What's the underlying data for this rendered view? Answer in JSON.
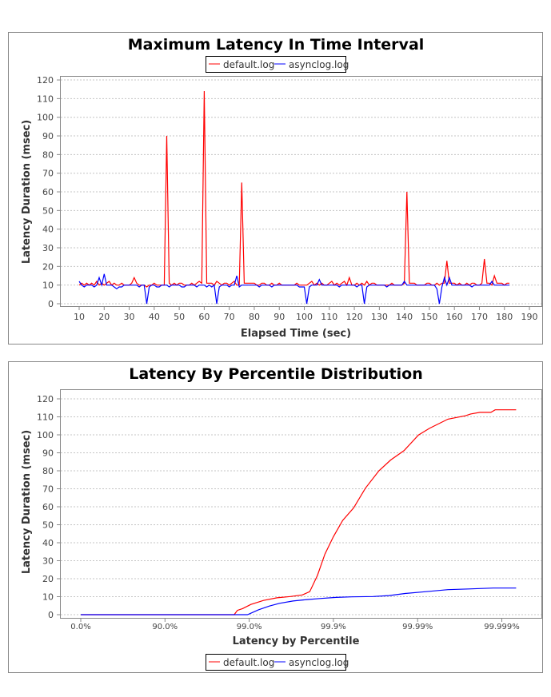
{
  "chart_data": [
    {
      "type": "line",
      "title": "Maximum Latency In Time Interval",
      "xlabel": "Elapsed Time (sec)",
      "ylabel": "Latency Duration (msec)",
      "xticks": [
        "10",
        "20",
        "30",
        "40",
        "50",
        "60",
        "70",
        "80",
        "90",
        "100",
        "110",
        "120",
        "130",
        "140",
        "150",
        "160",
        "170",
        "180",
        "190"
      ],
      "yticks": [
        "0",
        "10",
        "20",
        "30",
        "40",
        "50",
        "60",
        "70",
        "80",
        "90",
        "100",
        "110",
        "120"
      ],
      "ylim": [
        0,
        120
      ],
      "grid": true,
      "legend_position": "top",
      "x": [
        10,
        11,
        12,
        13,
        14,
        15,
        16,
        17,
        18,
        19,
        20,
        21,
        22,
        23,
        24,
        25,
        26,
        27,
        28,
        29,
        30,
        31,
        32,
        33,
        34,
        35,
        36,
        37,
        38,
        39,
        40,
        41,
        42,
        43,
        44,
        45,
        46,
        47,
        48,
        49,
        50,
        51,
        52,
        53,
        54,
        55,
        56,
        57,
        58,
        59,
        60,
        61,
        62,
        63,
        64,
        65,
        66,
        67,
        68,
        69,
        70,
        71,
        72,
        73,
        74,
        75,
        76,
        77,
        78,
        79,
        80,
        81,
        82,
        83,
        84,
        85,
        86,
        87,
        88,
        89,
        90,
        91,
        92,
        93,
        94,
        95,
        96,
        97,
        98,
        99,
        100,
        101,
        102,
        103,
        104,
        105,
        106,
        107,
        108,
        109,
        110,
        111,
        112,
        113,
        114,
        115,
        116,
        117,
        118,
        119,
        120,
        121,
        122,
        123,
        124,
        125,
        126,
        127,
        128,
        129,
        130,
        131,
        132,
        133,
        134,
        135,
        136,
        137,
        138,
        139,
        140,
        141,
        142,
        143,
        144,
        145,
        146,
        147,
        148,
        149,
        150,
        151,
        152,
        153,
        154,
        155,
        156,
        157,
        158,
        159,
        160,
        161,
        162,
        163,
        164,
        165,
        166,
        167,
        168,
        169,
        170,
        171,
        172,
        173,
        174,
        175,
        176,
        177,
        178,
        179,
        180,
        181,
        182
      ],
      "series": [
        {
          "name": "default.log",
          "color": "#ff0000",
          "values": [
            10,
            11,
            10,
            11,
            10,
            11,
            10,
            12,
            10,
            11,
            10,
            11,
            12,
            10,
            11,
            10,
            10,
            11,
            10,
            10,
            10,
            11,
            14,
            11,
            10,
            10,
            10,
            9,
            10,
            10,
            11,
            10,
            10,
            10,
            10,
            90,
            11,
            10,
            11,
            10,
            11,
            11,
            10,
            10,
            10,
            11,
            10,
            11,
            12,
            11,
            114,
            11,
            11,
            11,
            10,
            12,
            11,
            10,
            11,
            11,
            10,
            11,
            12,
            10,
            10,
            65,
            11,
            11,
            11,
            11,
            11,
            10,
            10,
            11,
            11,
            10,
            10,
            11,
            10,
            10,
            11,
            10,
            10,
            10,
            10,
            10,
            10,
            11,
            10,
            10,
            10,
            10,
            11,
            12,
            10,
            11,
            10,
            11,
            10,
            10,
            11,
            12,
            10,
            11,
            10,
            11,
            12,
            10,
            14,
            10,
            10,
            11,
            10,
            11,
            10,
            12,
            10,
            11,
            11,
            10,
            10,
            10,
            10,
            10,
            10,
            11,
            10,
            10,
            10,
            10,
            11,
            60,
            11,
            11,
            11,
            10,
            10,
            10,
            10,
            11,
            11,
            10,
            10,
            11,
            10,
            11,
            11,
            23,
            11,
            11,
            11,
            10,
            11,
            10,
            10,
            11,
            10,
            11,
            11,
            10,
            10,
            11,
            24,
            11,
            11,
            10,
            15,
            11,
            11,
            11,
            10,
            11,
            11
          ]
        },
        {
          "name": "asynclog.log",
          "color": "#0000ff",
          "values": [
            12,
            10,
            9,
            10,
            10,
            10,
            9,
            10,
            14,
            10,
            16,
            10,
            10,
            10,
            9,
            8,
            9,
            9,
            10,
            10,
            10,
            10,
            10,
            10,
            9,
            10,
            10,
            0,
            9,
            10,
            10,
            9,
            9,
            10,
            10,
            10,
            9,
            10,
            10,
            10,
            10,
            9,
            9,
            10,
            10,
            10,
            10,
            9,
            10,
            10,
            10,
            9,
            10,
            9,
            10,
            0,
            9,
            10,
            10,
            10,
            9,
            10,
            10,
            15,
            9,
            10,
            10,
            10,
            10,
            10,
            10,
            10,
            9,
            10,
            10,
            10,
            10,
            9,
            10,
            10,
            10,
            10,
            10,
            10,
            10,
            10,
            10,
            10,
            9,
            9,
            9,
            0,
            9,
            10,
            10,
            10,
            13,
            10,
            10,
            10,
            10,
            10,
            10,
            10,
            9,
            10,
            10,
            10,
            10,
            10,
            10,
            9,
            10,
            10,
            0,
            9,
            10,
            10,
            10,
            10,
            10,
            10,
            10,
            9,
            10,
            10,
            10,
            10,
            10,
            10,
            12,
            10,
            10,
            10,
            10,
            10,
            10,
            10,
            10,
            10,
            10,
            10,
            10,
            8,
            0,
            9,
            14,
            10,
            14,
            10,
            10,
            10,
            10,
            10,
            10,
            10,
            10,
            9,
            10,
            10,
            10,
            10,
            10,
            10,
            10,
            12,
            10,
            10,
            10,
            10,
            10,
            10,
            10
          ]
        }
      ]
    },
    {
      "type": "line",
      "title": "Latency By Percentile Distribution",
      "xlabel": "Latency by Percentile",
      "ylabel": "Latency Duration (msec)",
      "xscale": "log of 1/(1-percentile)",
      "xticks": [
        "0.0%",
        "90.0%",
        "99.0%",
        "99.9%",
        "99.99%",
        "99.999%"
      ],
      "xtick_values": [
        0,
        90,
        99,
        99.9,
        99.99,
        99.999
      ],
      "yticks": [
        "0",
        "10",
        "20",
        "30",
        "40",
        "50",
        "60",
        "70",
        "80",
        "90",
        "100",
        "110",
        "120"
      ],
      "ylim": [
        0,
        120
      ],
      "grid": true,
      "legend_position": "bottom",
      "series": [
        {
          "name": "default.log",
          "color": "#ff0000",
          "x": [
            0,
            98.49,
            98.62,
            98.8,
            99.045,
            99.324,
            99.532,
            99.676,
            99.766,
            99.809,
            99.845,
            99.874,
            99.9,
            99.9224,
            99.9425,
            99.9583,
            99.9712,
            99.9791,
            99.9855,
            99.99023,
            99.99276,
            99.99563,
            99.99731,
            99.99766,
            99.99818,
            99.99865,
            99.9988,
            99.999324
          ],
          "y": [
            0,
            0,
            2.4,
            3.4,
            5.7,
            7.9,
            9.4,
            10.1,
            11,
            12.8,
            21.8,
            33.7,
            43.4,
            52.4,
            59.4,
            70.3,
            80,
            86,
            91.2,
            99.9,
            103.6,
            108.7,
            110.6,
            111.6,
            112.5,
            112.5,
            113.9,
            113.9
          ]
        },
        {
          "name": "asynclog.log",
          "color": "#0000ff",
          "x": [
            0,
            98.953,
            99.224,
            99.425,
            99.563,
            99.698,
            99.776,
            99.855,
            99.9067,
            99.9397,
            99.9661,
            99.9781,
            99.9859,
            99.99206,
            99.99563,
            99.99755,
            99.99874,
            99.999324
          ],
          "y": [
            0,
            0,
            2.7,
            4.8,
            6.3,
            7.6,
            8.2,
            9,
            9.6,
            9.9,
            10.1,
            10.6,
            11.8,
            12.8,
            13.9,
            14.3,
            14.8,
            14.8
          ]
        }
      ]
    }
  ]
}
